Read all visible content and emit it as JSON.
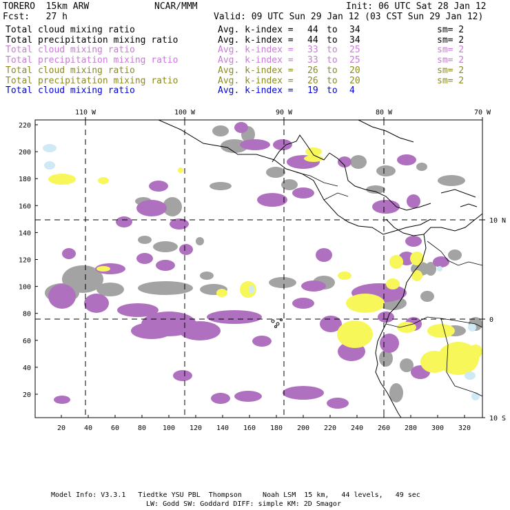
{
  "header": {
    "model": "TORERO  15km ARW",
    "org": "NCAR/MMM",
    "init": "Init: 06 UTC Sat 28 Jan 12",
    "fcst": "Fcst:   27 h",
    "valid": "Valid: 09 UTC Sun 29 Jan 12 (03 CST Sun 29 Jan 12)"
  },
  "legend": [
    {
      "field": "Total cloud mixing ratio",
      "index": "Avg. k-index =",
      "from": "44",
      "to_word": "to",
      "to": "34",
      "sm": "sm= 2",
      "color": "#000000"
    },
    {
      "field": "Total precipitation mixing ratio",
      "index": "Avg. k-index =",
      "from": "44",
      "to_word": "to",
      "to": "34",
      "sm": "sm= 2",
      "color": "#000000"
    },
    {
      "field": "Total cloud mixing ratio",
      "index": "Avg. k-index =",
      "from": "33",
      "to_word": "to",
      "to": "25",
      "sm": "sm= 2",
      "color": "#c77bd6"
    },
    {
      "field": "Total precipitation mixing ratio",
      "index": "Avg. k-index =",
      "from": "33",
      "to_word": "to",
      "to": "25",
      "sm": "sm= 2",
      "color": "#c77bd6"
    },
    {
      "field": "Total cloud mixing ratio",
      "index": "Avg. k-index =",
      "from": "26",
      "to_word": "to",
      "to": "20",
      "sm": "sm= 2",
      "color": "#8a8a1e"
    },
    {
      "field": "Total precipitation mixing ratio",
      "index": "Avg. k-index =",
      "from": "26",
      "to_word": "to",
      "to": "20",
      "sm": "sm= 2",
      "color": "#8a8a1e"
    },
    {
      "field": "Total cloud mixing ratio",
      "index": "Avg. k-index =",
      "from": "19",
      "to_word": "to",
      "to": "4",
      "sm": "",
      "color": "#0000dd"
    }
  ],
  "map": {
    "lon_labels": [
      "110 W",
      "100 W",
      "90 W",
      "80 W",
      "70 W"
    ],
    "lat_labels": [
      "10 N",
      "0",
      "10 S"
    ],
    "y_ticks": [
      "220",
      "200",
      "180",
      "160",
      "140",
      "120",
      "100",
      "80",
      "60",
      "40",
      "20"
    ],
    "x_ticks": [
      "20",
      "40",
      "60",
      "80",
      "100",
      "120",
      "140",
      "160",
      "180",
      "200",
      "220",
      "240",
      "260",
      "280",
      "300",
      "320"
    ],
    "colors": {
      "gray": "#a3a3a3",
      "purple": "#b070c0",
      "yellow": "#f7f75a",
      "lightblue": "#cfe9f5",
      "coast": "#000000"
    }
  },
  "footer": {
    "line1": "Model Info: V3.3.1   Tiedtke YSU PBL  Thompson     Noah LSM  15 km,   44 levels,   49 sec",
    "line2": "LW: Godd SW: Goddard DIFF: simple KM: 2D Smagor"
  }
}
